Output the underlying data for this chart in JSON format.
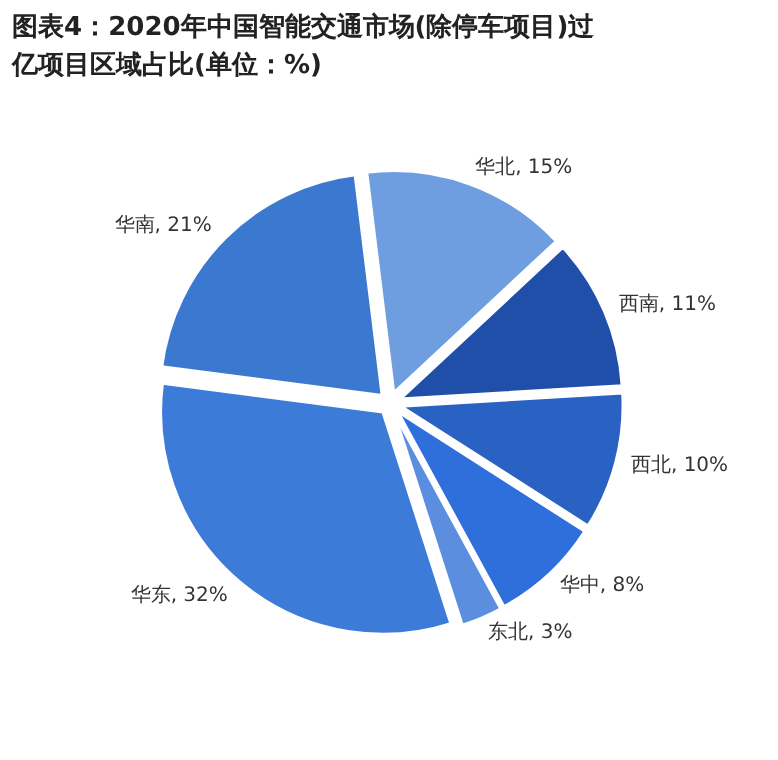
{
  "chart_data": {
    "type": "pie",
    "title": "图表4：2020年中国智能交通市场(除停车项目)过亿项目区域占比(单位：%)",
    "categories": [
      "华北",
      "西南",
      "西北",
      "华中",
      "东北",
      "华东",
      "华南"
    ],
    "values": [
      15,
      11,
      10,
      8,
      3,
      32,
      21
    ],
    "colors": [
      "#6f9ee0",
      "#1f4fa8",
      "#2a62c4",
      "#2f6fdc",
      "#5c8ee0",
      "#3d7bd9",
      "#3b78d0"
    ],
    "value_labels": [
      ", 15%",
      ", 11%",
      ", 10%",
      ", 8%",
      ", 3%",
      ", 32%",
      ", 21%"
    ]
  }
}
